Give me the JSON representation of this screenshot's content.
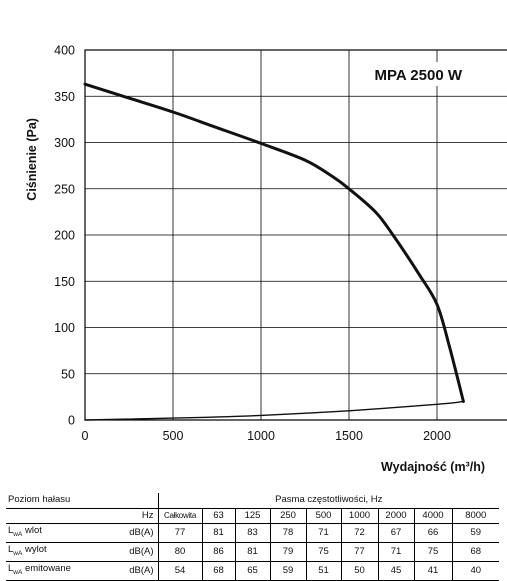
{
  "chart_data": {
    "type": "line",
    "title": "MPA 2500 W",
    "xlabel": "Wydajność (m³/h)",
    "ylabel": "Ciśnienie (Pa)",
    "xlim": [
      0,
      2500
    ],
    "ylim": [
      0,
      400
    ],
    "x_ticks": [
      0,
      500,
      1000,
      1500,
      2000,
      2500
    ],
    "y_ticks": [
      0,
      50,
      100,
      150,
      200,
      250,
      300,
      350,
      400
    ],
    "grid": true,
    "series": [
      {
        "values": [
          {
            "x": 0,
            "y": 363
          },
          {
            "x": 250,
            "y": 348
          },
          {
            "x": 500,
            "y": 333
          },
          {
            "x": 750,
            "y": 316
          },
          {
            "x": 1000,
            "y": 299
          },
          {
            "x": 1250,
            "y": 281
          },
          {
            "x": 1400,
            "y": 264
          },
          {
            "x": 1500,
            "y": 250
          },
          {
            "x": 1650,
            "y": 225
          },
          {
            "x": 1750,
            "y": 200
          },
          {
            "x": 1900,
            "y": 157
          },
          {
            "x": 2000,
            "y": 125
          },
          {
            "x": 2070,
            "y": 80
          },
          {
            "x": 2150,
            "y": 20
          }
        ]
      },
      {
        "values": [
          {
            "x": 0,
            "y": 0
          },
          {
            "x": 500,
            "y": 2
          },
          {
            "x": 1000,
            "y": 5
          },
          {
            "x": 1500,
            "y": 10
          },
          {
            "x": 2000,
            "y": 17
          },
          {
            "x": 2150,
            "y": 20
          }
        ]
      }
    ]
  },
  "noise_table": {
    "row_header": "Poziom hałasu",
    "bands_header": "Pasma częstotliwości, Hz",
    "hz_label": "Hz",
    "columns": [
      "Całkowita",
      "63",
      "125",
      "250",
      "500",
      "1000",
      "2000",
      "4000",
      "8000"
    ],
    "rows": [
      {
        "label_main": "L",
        "label_sub": "wA",
        "label_rest": " wlot",
        "unit": "dB(A)",
        "values": [
          "77",
          "81",
          "83",
          "78",
          "71",
          "72",
          "67",
          "66",
          "59"
        ]
      },
      {
        "label_main": "L",
        "label_sub": "wA",
        "label_rest": " wylot",
        "unit": "dB(A)",
        "values": [
          "80",
          "86",
          "81",
          "79",
          "75",
          "77",
          "71",
          "75",
          "68"
        ]
      },
      {
        "label_main": "L",
        "label_sub": "wA",
        "label_rest": " emitowane",
        "unit": "dB(A)",
        "values": [
          "54",
          "68",
          "65",
          "59",
          "51",
          "50",
          "45",
          "41",
          "40"
        ]
      }
    ]
  }
}
